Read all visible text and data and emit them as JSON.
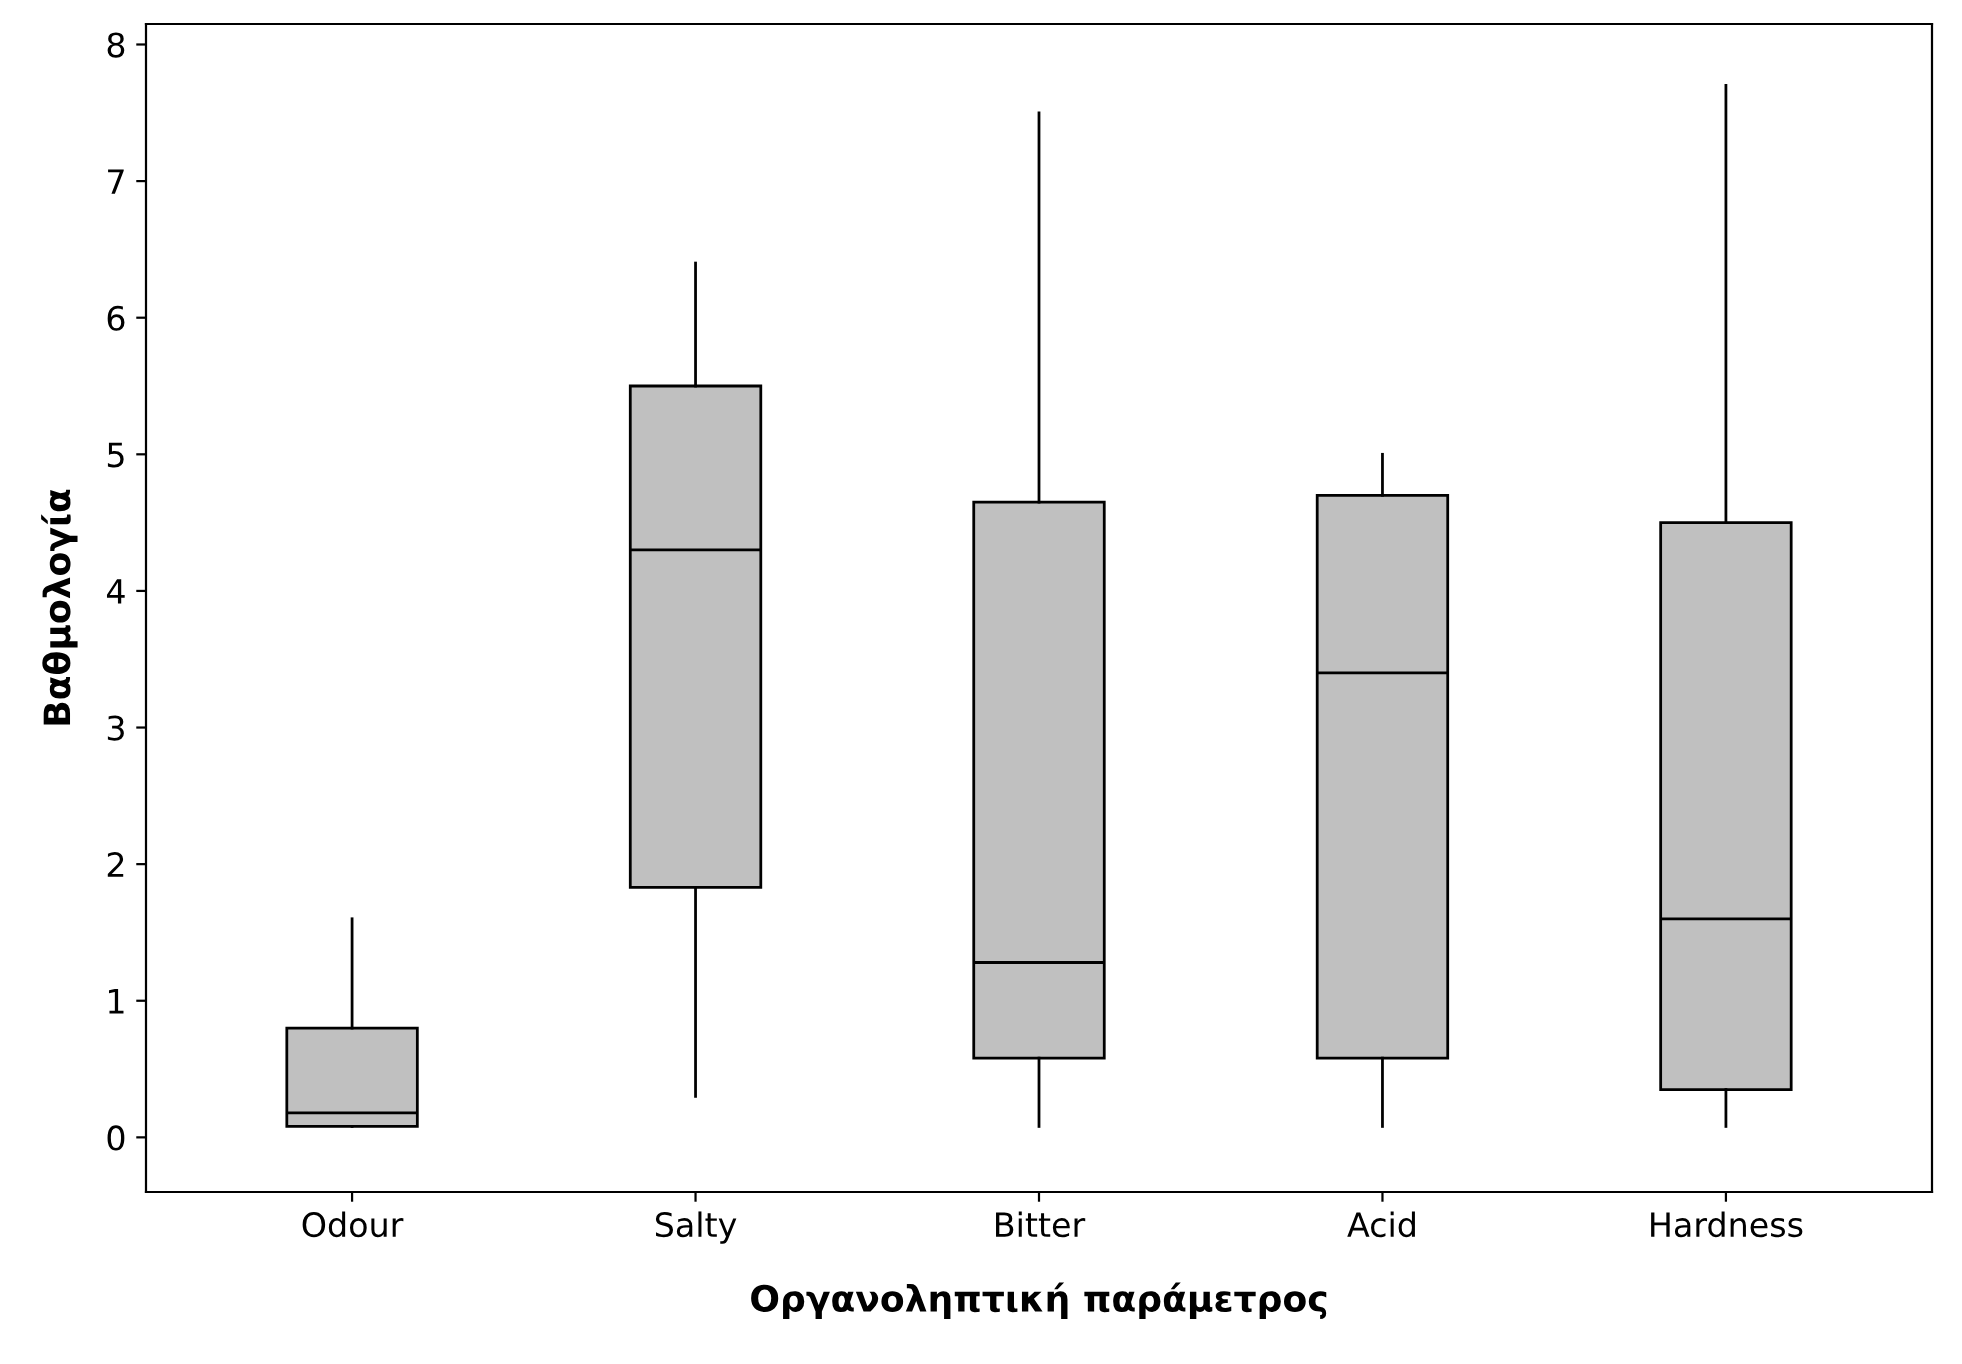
{
  "chart_data": {
    "type": "box",
    "xlabel": "Οργανοληπτική παράμετρος",
    "ylabel": "Βαθμολογία",
    "categories": [
      "Odour",
      "Salty",
      "Bitter",
      "Acid",
      "Hardness"
    ],
    "color": "#c0c0c0",
    "ylim": [
      -0.4,
      8.15
    ],
    "yticks": [
      0,
      1,
      2,
      3,
      4,
      5,
      6,
      7,
      8
    ],
    "grid": false,
    "boxes": [
      {
        "low": 0.08,
        "q1": 0.08,
        "median": 0.18,
        "q3": 0.8,
        "high": 1.6
      },
      {
        "low": 0.3,
        "q1": 1.83,
        "median": 4.3,
        "q3": 5.5,
        "high": 6.4
      },
      {
        "low": 0.08,
        "q1": 0.58,
        "median": 1.28,
        "q3": 4.65,
        "high": 7.5
      },
      {
        "low": 0.08,
        "q1": 0.58,
        "median": 3.4,
        "q3": 4.7,
        "high": 5.0
      },
      {
        "low": 0.08,
        "q1": 0.35,
        "median": 1.6,
        "q3": 4.5,
        "high": 7.7
      }
    ]
  }
}
